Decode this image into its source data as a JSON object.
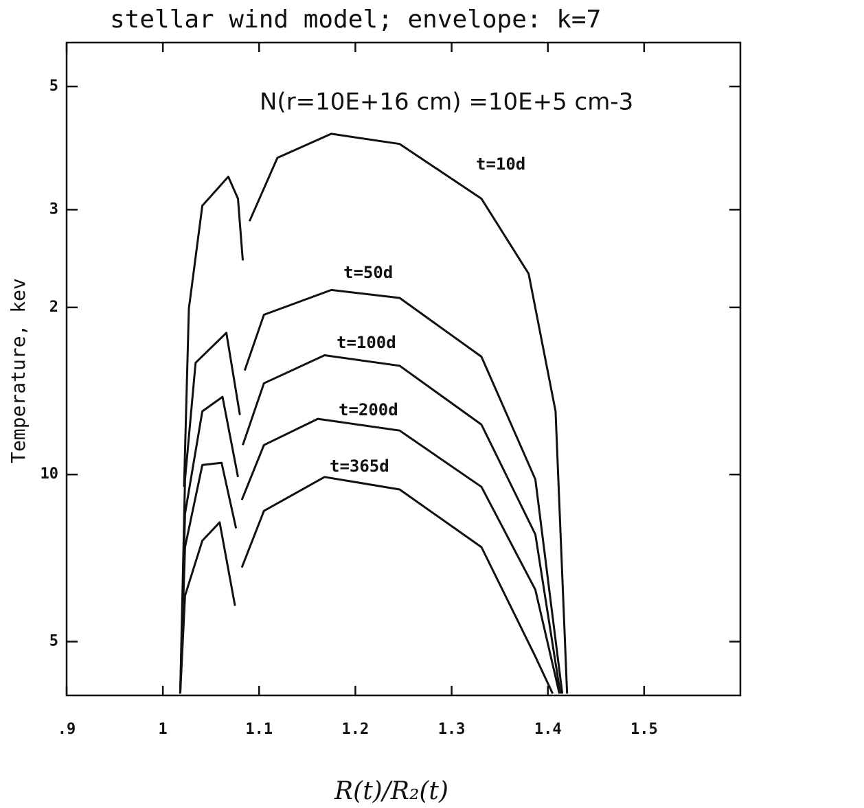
{
  "chart_data": {
    "type": "line",
    "title": "stellar wind model;  envelope: k=7",
    "annotation": "N(r=10E+16 cm) =10E+5 cm-3",
    "xlabel": "R(t)/R₂(t)",
    "ylabel": "Temperature, kev",
    "log_y": true,
    "xlim": [
      0.9,
      1.6
    ],
    "ylim": [
      4,
      60
    ],
    "xticks": [
      {
        "value": 0.9,
        "label": ".9"
      },
      1,
      1.1,
      1.2,
      1.3,
      1.4,
      1.5
    ],
    "yticks": [
      5,
      10,
      {
        "value": 20,
        "label": "2"
      },
      {
        "value": 30,
        "label": "3"
      },
      {
        "value": 50,
        "label": "5"
      }
    ],
    "series": [
      {
        "name": "t=10d",
        "color": "#111111",
        "x": [
          1.022,
          1.027,
          1.041,
          1.068,
          1.078,
          1.083,
          null,
          1.09,
          1.119,
          1.175,
          1.246,
          1.331,
          1.38,
          1.408,
          1.42
        ],
        "values": [
          9.5,
          19.9,
          30.5,
          34.4,
          31.4,
          24.3,
          null,
          28.6,
          37.2,
          41.1,
          39.4,
          31.4,
          23.0,
          13.0,
          4.03
        ]
      },
      {
        "name": "t=50d",
        "color": "#111111",
        "x": [
          1.018,
          1.023,
          1.034,
          1.066,
          1.08,
          null,
          1.085,
          1.105,
          1.175,
          1.246,
          1.331,
          1.387,
          1.415
        ],
        "values": [
          4.03,
          9.8,
          15.9,
          18.0,
          12.8,
          null,
          15.4,
          19.4,
          21.5,
          20.8,
          16.3,
          9.8,
          4.03
        ]
      },
      {
        "name": "t=100d",
        "color": "#111111",
        "x": [
          1.018,
          1.023,
          1.041,
          1.062,
          1.078,
          null,
          1.083,
          1.105,
          1.168,
          1.246,
          1.331,
          1.387,
          1.413
        ],
        "values": [
          4.03,
          8.5,
          13.0,
          13.8,
          9.9,
          null,
          11.3,
          14.6,
          16.4,
          15.7,
          12.3,
          7.8,
          4.03
        ]
      },
      {
        "name": "t=200d",
        "color": "#111111",
        "x": [
          1.018,
          1.023,
          1.041,
          1.061,
          1.076,
          null,
          1.082,
          1.105,
          1.161,
          1.246,
          1.331,
          1.387,
          1.412
        ],
        "values": [
          4.03,
          7.4,
          10.4,
          10.5,
          8.0,
          null,
          9.0,
          11.3,
          12.6,
          12.0,
          9.5,
          6.2,
          4.03
        ]
      },
      {
        "name": "t=365d",
        "color": "#111111",
        "x": [
          1.018,
          1.023,
          1.041,
          1.059,
          1.075,
          null,
          1.082,
          1.105,
          1.168,
          1.246,
          1.331,
          1.387,
          1.405
        ],
        "values": [
          4.03,
          6.05,
          7.6,
          8.2,
          5.8,
          null,
          6.8,
          8.6,
          9.9,
          9.4,
          7.4,
          4.7,
          4.03
        ]
      }
    ]
  }
}
